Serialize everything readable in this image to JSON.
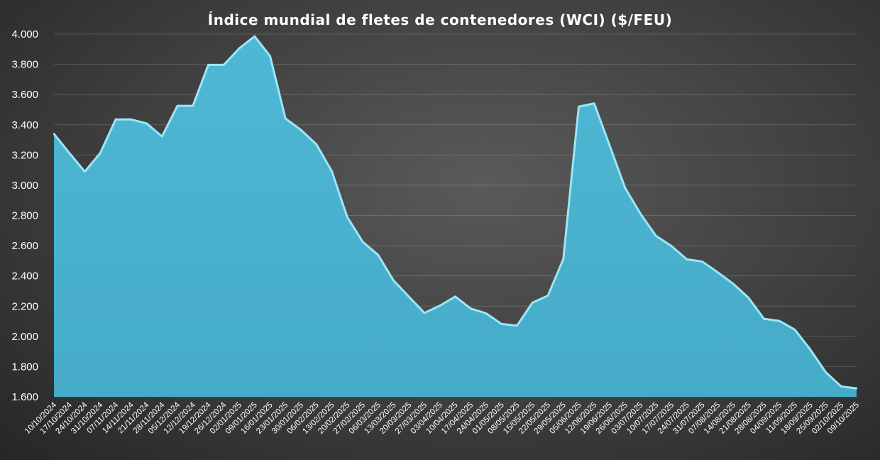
{
  "chart_data": {
    "type": "area",
    "title": "Índice mundial de fletes de contenedores (WCI) ($/FEU)",
    "xlabel": "",
    "ylabel": "",
    "ylim": [
      1600,
      4000
    ],
    "yticks": [
      1600,
      1800,
      2000,
      2200,
      2400,
      2600,
      2800,
      3000,
      3200,
      3400,
      3600,
      3800,
      4000
    ],
    "ytick_labels": [
      "1.600",
      "1.800",
      "2.000",
      "2.200",
      "2.400",
      "2.600",
      "2.800",
      "3.000",
      "3.200",
      "3.400",
      "3.600",
      "3.800",
      "4.000"
    ],
    "grid": true,
    "legend": "none",
    "fill_color": "#4fb8d4",
    "edge_color": "#9be6f8",
    "categories": [
      "10/10/2024",
      "17/10/2024",
      "24/10/2024",
      "31/10/2024",
      "07/11/2024",
      "14/11/2024",
      "21/11/2024",
      "28/11/2024",
      "05/12/2024",
      "12/12/2024",
      "19/12/2024",
      "26/12/2024",
      "02/01/2025",
      "09/01/2025",
      "16/01/2025",
      "23/01/2025",
      "30/01/2025",
      "06/02/2025",
      "13/02/2025",
      "20/02/2025",
      "27/02/2025",
      "06/03/2025",
      "13/03/2025",
      "20/03/2025",
      "27/03/2025",
      "03/04/2025",
      "10/04/2025",
      "17/04/2025",
      "24/04/2025",
      "01/05/2025",
      "08/05/2025",
      "15/05/2025",
      "22/05/2025",
      "29/05/2025",
      "05/06/2025",
      "12/06/2025",
      "19/06/2025",
      "26/06/2025",
      "03/07/2025",
      "10/07/2025",
      "17/07/2025",
      "24/07/2025",
      "31/07/2025",
      "07/08/2025",
      "14/08/2025",
      "21/08/2025",
      "28/08/2025",
      "04/09/2025",
      "11/09/2025",
      "18/09/2025",
      "25/09/2025",
      "02/10/2025",
      "09/10/2025"
    ],
    "values": [
      3340,
      3213,
      3090,
      3213,
      3435,
      3435,
      3409,
      3323,
      3525,
      3525,
      3796,
      3796,
      3905,
      3985,
      3855,
      3441,
      3366,
      3271,
      3093,
      2790,
      2626,
      2539,
      2370,
      2262,
      2155,
      2203,
      2263,
      2184,
      2152,
      2082,
      2071,
      2223,
      2269,
      2511,
      3520,
      3541,
      3263,
      2983,
      2811,
      2665,
      2598,
      2510,
      2495,
      2424,
      2349,
      2255,
      2116,
      2102,
      2044,
      1913,
      1763,
      1669,
      1656
    ]
  }
}
